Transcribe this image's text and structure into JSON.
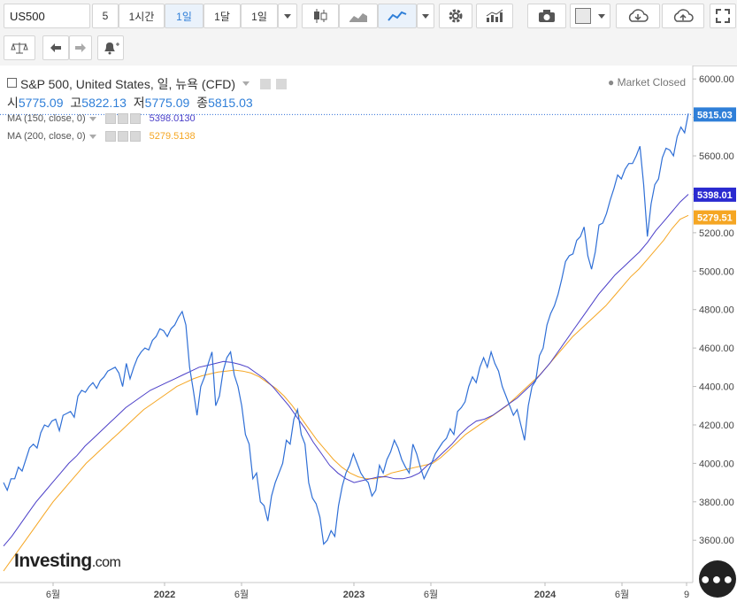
{
  "toolbar": {
    "symbol": "US500",
    "interval_5": "5",
    "interval_1h": "1시간",
    "interval_1d": "1일",
    "interval_1mo": "1달",
    "interval_1d_menu": "1일"
  },
  "legend": {
    "title": "S&P 500, United States, 일, 뉴욕 (CFD)",
    "market_status": "Market Closed",
    "open_label": "시",
    "open": "5775.09",
    "high_label": "고",
    "high": "5822.13",
    "low_label": "저",
    "low": "5775.09",
    "close_label": "종",
    "close": "5815.03",
    "ma150_label": "MA (150, close, 0)",
    "ma150_value": "5398.0130",
    "ma200_label": "MA (200, close, 0)",
    "ma200_value": "5279.5138"
  },
  "brand": {
    "name": "Investing",
    "suffix": ".com"
  },
  "colors": {
    "price": "#2f6fd6",
    "ma150": "#4b3fc8",
    "ma200": "#f5a623",
    "price_tag": "#2f7fd8",
    "ma150_tag": "#2a2ad0",
    "ma200_tag": "#f5a623"
  },
  "chart_data": {
    "type": "line",
    "y_axis_ticks": [
      3600,
      3800,
      4000,
      4200,
      4400,
      4600,
      4800,
      5000,
      5200,
      5400,
      5600,
      5800,
      6000
    ],
    "x_axis_labels": [
      "6월",
      "2022",
      "6월",
      "2023",
      "6월",
      "2024",
      "6월",
      "9"
    ],
    "ylim": [
      3380,
      6070
    ],
    "last_price": "5815.03",
    "ma150_last": "5398.01",
    "ma200_last": "5279.51",
    "series": [
      {
        "name": "S&P 500",
        "values": [
          3900,
          3860,
          3920,
          3920,
          3980,
          3960,
          4020,
          4080,
          4100,
          4080,
          4160,
          4200,
          4190,
          4220,
          4230,
          4170,
          4250,
          4260,
          4270,
          4240,
          4350,
          4380,
          4370,
          4400,
          4420,
          4390,
          4430,
          4450,
          4480,
          4490,
          4500,
          4470,
          4400,
          4520,
          4440,
          4500,
          4550,
          4580,
          4600,
          4590,
          4640,
          4660,
          4700,
          4690,
          4660,
          4700,
          4720,
          4760,
          4790,
          4720,
          4500,
          4380,
          4250,
          4400,
          4450,
          4520,
          4580,
          4300,
          4350,
          4480,
          4550,
          4580,
          4460,
          4400,
          4300,
          4150,
          4100,
          3920,
          3950,
          3800,
          3780,
          3700,
          3830,
          3900,
          3950,
          4000,
          4120,
          4100,
          4230,
          4280,
          4150,
          4100,
          3900,
          3820,
          3790,
          3720,
          3580,
          3600,
          3650,
          3620,
          3780,
          3880,
          3950,
          3990,
          4050,
          4000,
          3950,
          3920,
          3900,
          3830,
          3860,
          3990,
          3950,
          4020,
          4060,
          4120,
          4080,
          4020,
          3980,
          3950,
          4100,
          4050,
          3980,
          3920,
          3960,
          4000,
          4050,
          4080,
          4110,
          4130,
          4180,
          4150,
          4270,
          4290,
          4320,
          4400,
          4450,
          4420,
          4500,
          4550,
          4500,
          4580,
          4520,
          4480,
          4400,
          4350,
          4300,
          4250,
          4280,
          4200,
          4120,
          4300,
          4400,
          4430,
          4560,
          4600,
          4720,
          4780,
          4820,
          4880,
          4960,
          5050,
          5080,
          5090,
          5160,
          5180,
          5230,
          5080,
          5010,
          5100,
          5240,
          5250,
          5300,
          5370,
          5430,
          5500,
          5480,
          5530,
          5560,
          5560,
          5600,
          5650,
          5450,
          5180,
          5350,
          5450,
          5480,
          5590,
          5640,
          5630,
          5600,
          5700,
          5750,
          5720,
          5820
        ]
      },
      {
        "name": "MA (150, close, 0)",
        "values": [
          3570,
          3620,
          3680,
          3740,
          3800,
          3850,
          3900,
          3950,
          4000,
          4040,
          4090,
          4130,
          4170,
          4210,
          4250,
          4290,
          4320,
          4350,
          4380,
          4400,
          4420,
          4440,
          4460,
          4480,
          4500,
          4510,
          4520,
          4530,
          4525,
          4515,
          4500,
          4470,
          4440,
          4400,
          4350,
          4300,
          4240,
          4180,
          4110,
          4050,
          3990,
          3950,
          3920,
          3900,
          3910,
          3920,
          3930,
          3930,
          3920,
          3920,
          3930,
          3950,
          3990,
          4020,
          4060,
          4100,
          4150,
          4190,
          4220,
          4230,
          4250,
          4280,
          4310,
          4340,
          4380,
          4420,
          4470,
          4520,
          4580,
          4640,
          4700,
          4760,
          4820,
          4880,
          4930,
          4980,
          5020,
          5060,
          5100,
          5150,
          5210,
          5260,
          5310,
          5360,
          5400
        ]
      },
      {
        "name": "MA (200, close, 0)",
        "values": [
          3440,
          3500,
          3560,
          3620,
          3680,
          3740,
          3800,
          3850,
          3900,
          3950,
          4000,
          4040,
          4080,
          4120,
          4160,
          4200,
          4240,
          4280,
          4310,
          4340,
          4370,
          4400,
          4420,
          4440,
          4455,
          4465,
          4475,
          4480,
          4485,
          4480,
          4470,
          4450,
          4420,
          4390,
          4350,
          4300,
          4240,
          4180,
          4120,
          4070,
          4020,
          3980,
          3950,
          3930,
          3920,
          3920,
          3930,
          3950,
          3960,
          3970,
          3980,
          3990,
          4000,
          4030,
          4070,
          4110,
          4150,
          4180,
          4210,
          4240,
          4270,
          4300,
          4340,
          4380,
          4420,
          4460,
          4510,
          4560,
          4610,
          4660,
          4700,
          4740,
          4780,
          4820,
          4870,
          4920,
          4970,
          5010,
          5060,
          5110,
          5160,
          5220,
          5270,
          5290
        ]
      }
    ]
  }
}
